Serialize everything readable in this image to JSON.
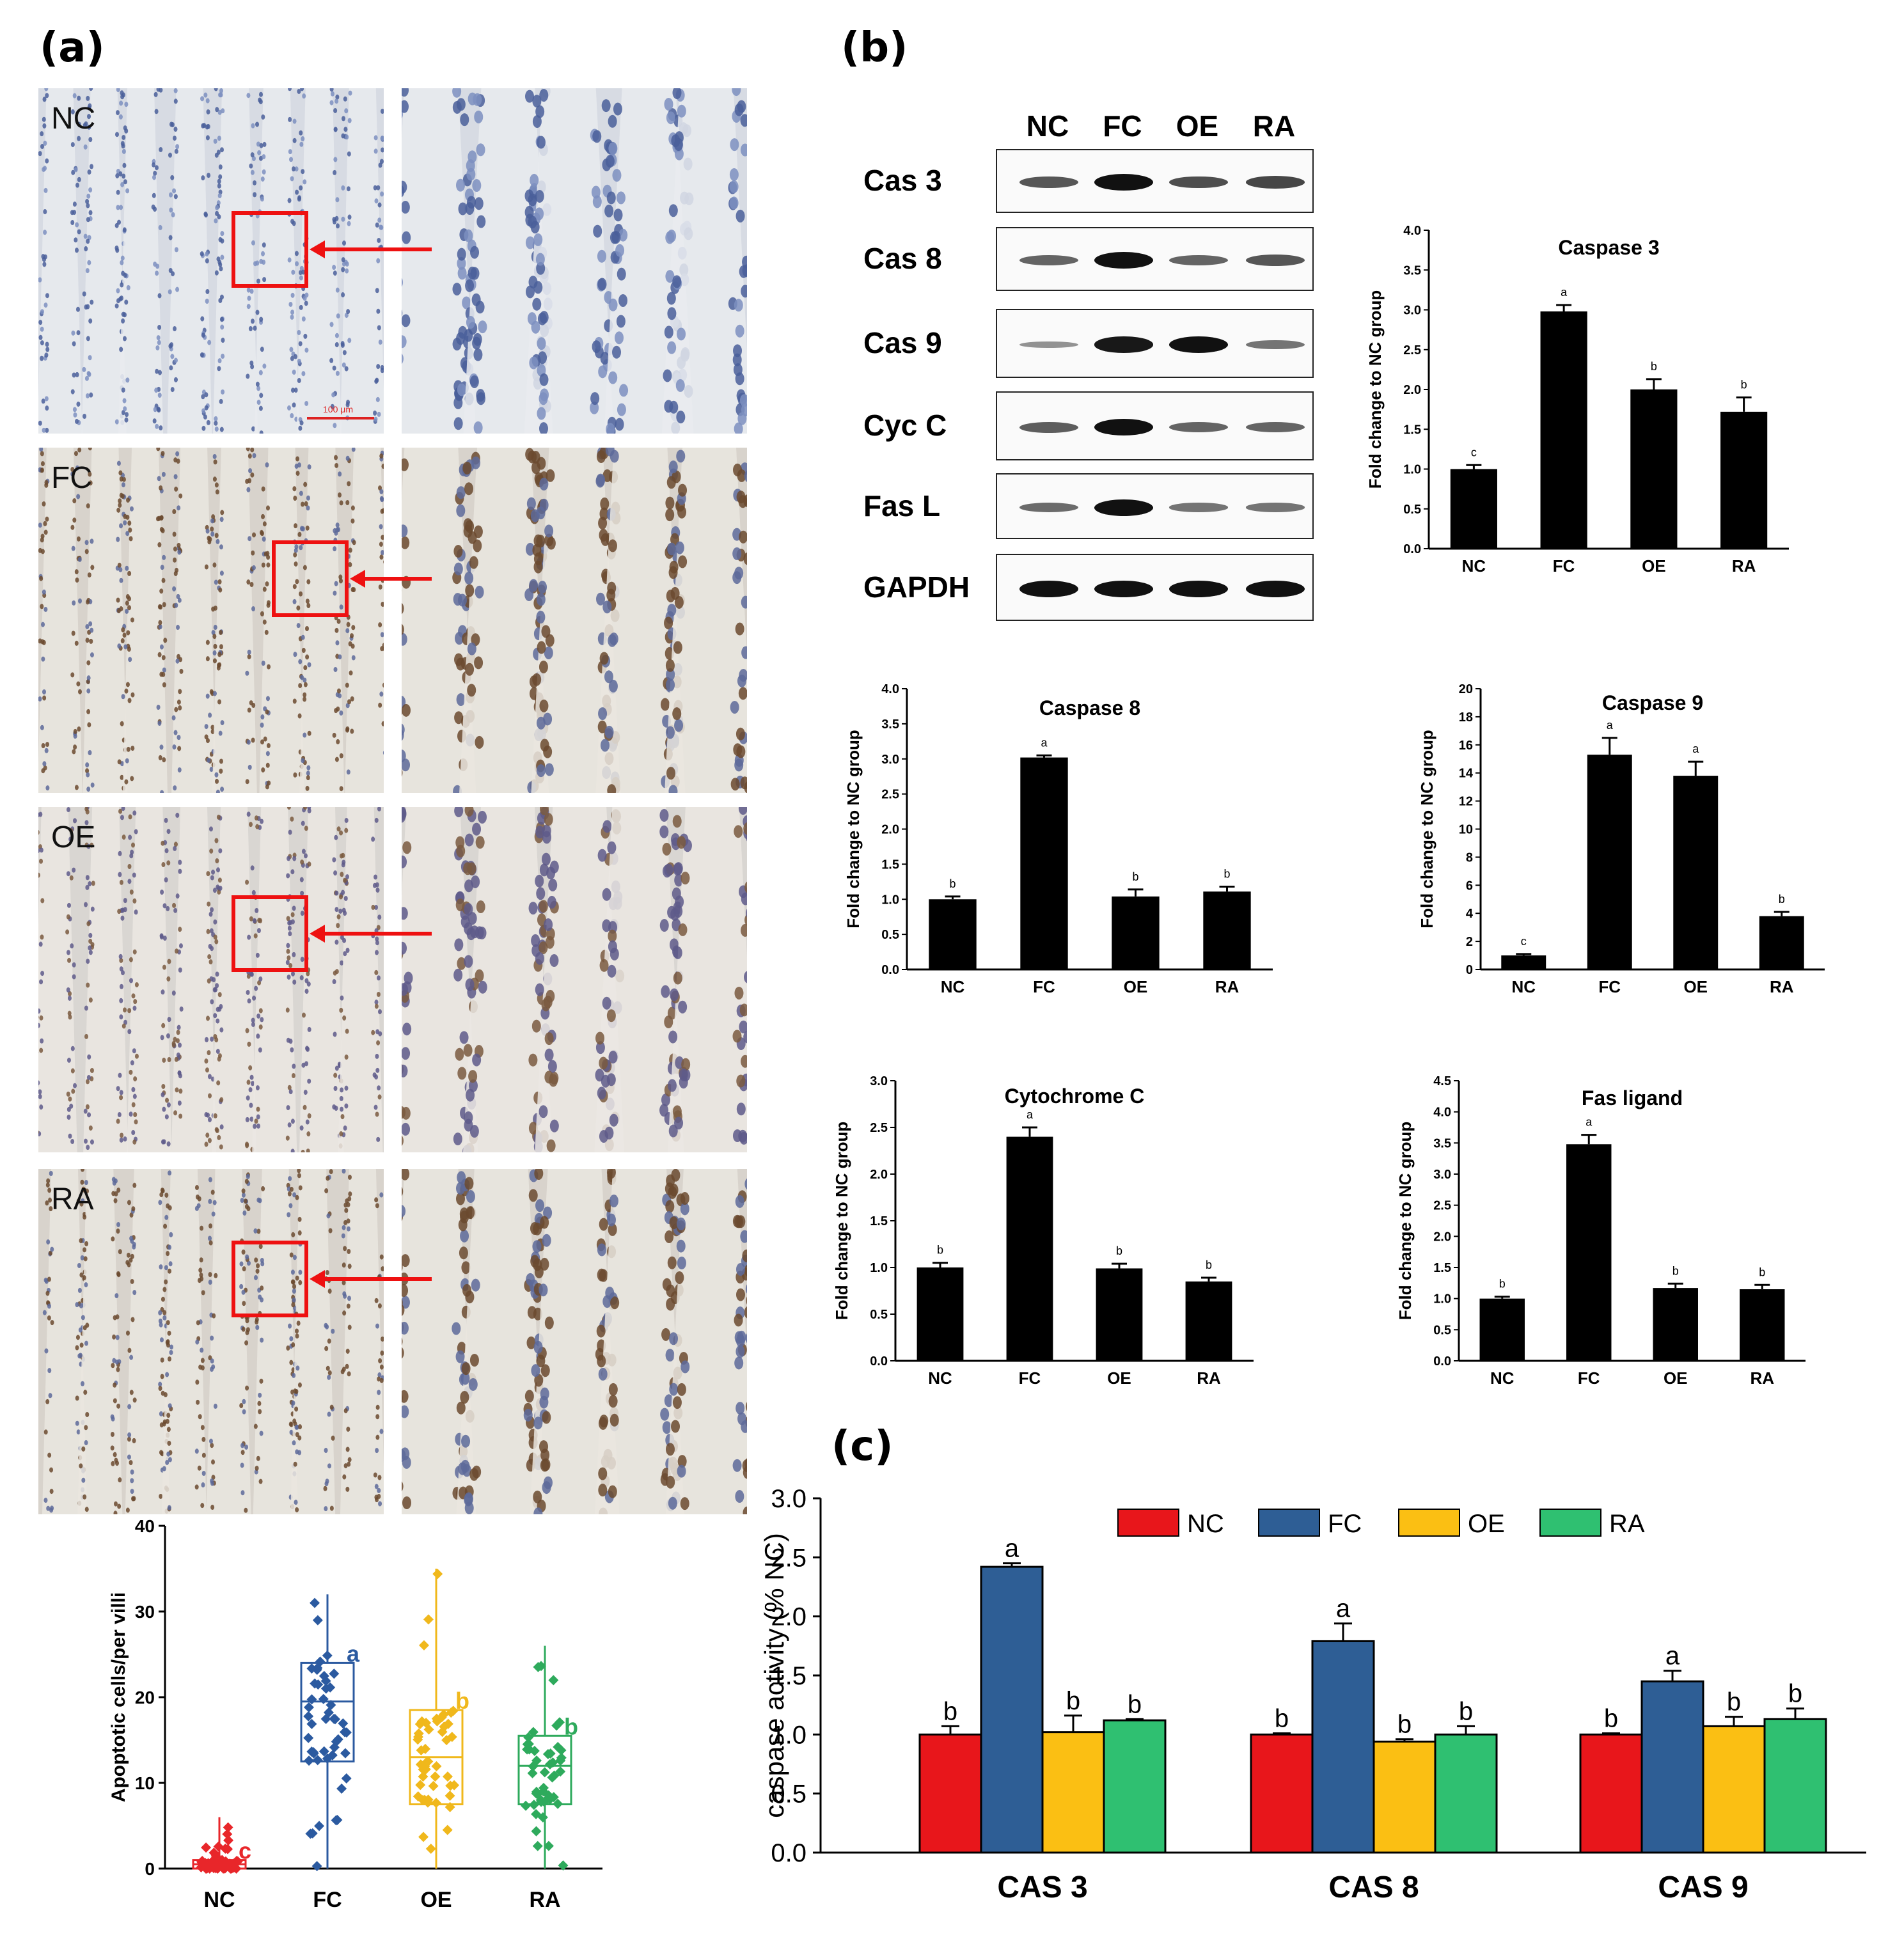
{
  "panel_labels": {
    "a": "(a)",
    "b": "(b)",
    "c": "(c)"
  },
  "micrographs": [
    {
      "label": "NC",
      "tone": "blue"
    },
    {
      "label": "FC",
      "tone": "brown"
    },
    {
      "label": "OE",
      "tone": "mixed"
    },
    {
      "label": "RA",
      "tone": "brown"
    }
  ],
  "scale_bar_text": "100 μm",
  "western_blot": {
    "groups": [
      "NC",
      "FC",
      "OE",
      "RA"
    ],
    "rows": [
      {
        "name": "Cas 3",
        "intensity": [
          0.55,
          1.0,
          0.6,
          0.65
        ]
      },
      {
        "name": "Cas 8",
        "intensity": [
          0.45,
          1.0,
          0.45,
          0.55
        ]
      },
      {
        "name": "Cas 9",
        "intensity": [
          0.15,
          0.95,
          1.0,
          0.35
        ]
      },
      {
        "name": "Cyc C",
        "intensity": [
          0.5,
          1.0,
          0.45,
          0.45
        ]
      },
      {
        "name": "Fas L",
        "intensity": [
          0.4,
          1.0,
          0.35,
          0.35
        ]
      },
      {
        "name": "GAPDH",
        "intensity": [
          1.0,
          1.0,
          1.0,
          1.0
        ]
      }
    ]
  },
  "chart_data": [
    {
      "type": "box",
      "panel": "a",
      "ylabel": "Apoptotic cells/per villi",
      "categories": [
        "NC",
        "FC",
        "OE",
        "RA"
      ],
      "ylim": [
        0,
        40
      ],
      "yticks": [
        0,
        10,
        20,
        30,
        40
      ],
      "colors": [
        "#e8262a",
        "#2b5aa0",
        "#f0b81c",
        "#2eaa5c"
      ],
      "boxes": [
        {
          "q1": 0,
          "median": 0.5,
          "q3": 1,
          "min": 0,
          "max": 6,
          "letter": "c"
        },
        {
          "q1": 12.5,
          "median": 19.5,
          "q3": 24,
          "min": 0,
          "max": 32,
          "letter": "a"
        },
        {
          "q1": 7.5,
          "median": 13,
          "q3": 18.5,
          "min": 0,
          "max": 35,
          "letter": "b"
        },
        {
          "q1": 7.5,
          "median": 12,
          "q3": 15.5,
          "min": 0,
          "max": 26,
          "letter": "b"
        }
      ]
    },
    {
      "type": "bar",
      "panel": "b",
      "title": "Caspase 3",
      "ylabel": "Fold change to NC group",
      "categories": [
        "NC",
        "FC",
        "OE",
        "RA"
      ],
      "values": [
        1.0,
        2.98,
        2.0,
        1.72
      ],
      "errors": [
        0.05,
        0.08,
        0.13,
        0.18
      ],
      "letters": [
        "c",
        "a",
        "b",
        "b"
      ],
      "ylim": [
        0,
        4.0
      ],
      "yticks": [
        "0.0",
        "0.5",
        "1.0",
        "1.5",
        "2.0",
        "2.5",
        "3.0",
        "3.5",
        "4.0"
      ]
    },
    {
      "type": "bar",
      "panel": "b",
      "title": "Caspase 8",
      "ylabel": "Fold change to NC group",
      "categories": [
        "NC",
        "FC",
        "OE",
        "RA"
      ],
      "values": [
        1.0,
        3.02,
        1.04,
        1.11
      ],
      "errors": [
        0.04,
        0.03,
        0.1,
        0.07
      ],
      "letters": [
        "b",
        "a",
        "b",
        "b"
      ],
      "ylim": [
        0,
        4.0
      ],
      "yticks": [
        "0.0",
        "0.5",
        "1.0",
        "1.5",
        "2.0",
        "2.5",
        "3.0",
        "3.5",
        "4.0"
      ]
    },
    {
      "type": "bar",
      "panel": "b",
      "title": "Caspase 9",
      "ylabel": "Fold change to NC group",
      "categories": [
        "NC",
        "FC",
        "OE",
        "RA"
      ],
      "values": [
        1.0,
        15.3,
        13.8,
        3.8
      ],
      "errors": [
        0.1,
        1.2,
        1.0,
        0.3
      ],
      "letters": [
        "c",
        "a",
        "a",
        "b"
      ],
      "ylim": [
        0,
        20
      ],
      "yticks": [
        "0",
        "2",
        "4",
        "6",
        "8",
        "10",
        "12",
        "14",
        "16",
        "18",
        "20"
      ]
    },
    {
      "type": "bar",
      "panel": "b",
      "title": "Cytochrome C",
      "ylabel": "Fold change to NC group",
      "categories": [
        "NC",
        "FC",
        "OE",
        "RA"
      ],
      "values": [
        1.0,
        2.4,
        0.99,
        0.85
      ],
      "errors": [
        0.05,
        0.1,
        0.05,
        0.04
      ],
      "letters": [
        "b",
        "a",
        "b",
        "b"
      ],
      "ylim": [
        0,
        3.0
      ],
      "yticks": [
        "0.0",
        "0.5",
        "1.0",
        "1.5",
        "2.0",
        "2.5",
        "3.0"
      ]
    },
    {
      "type": "bar",
      "panel": "b",
      "title": "Fas ligand",
      "ylabel": "Fold change to NC group",
      "categories": [
        "NC",
        "FC",
        "OE",
        "RA"
      ],
      "values": [
        1.0,
        3.48,
        1.17,
        1.15
      ],
      "errors": [
        0.03,
        0.15,
        0.07,
        0.07
      ],
      "letters": [
        "b",
        "a",
        "b",
        "b"
      ],
      "ylim": [
        0,
        4.5
      ],
      "yticks": [
        "0.0",
        "0.5",
        "1.0",
        "1.5",
        "2.0",
        "2.5",
        "3.0",
        "3.5",
        "4.0",
        "4.5"
      ]
    },
    {
      "type": "grouped-bar",
      "panel": "c",
      "ylabel": "caspase activity (% NC)",
      "categories": [
        "CAS 3",
        "CAS 8",
        "CAS 9"
      ],
      "ylim": [
        0,
        3.0
      ],
      "yticks": [
        "0.0",
        "0.5",
        "1.0",
        "1.5",
        "2.0",
        "2.5",
        "3.0"
      ],
      "legend_position": "top",
      "series": [
        {
          "name": "NC",
          "color": "#e8161b",
          "values": [
            1.0,
            1.0,
            1.0
          ],
          "errors": [
            0.07,
            0.01,
            0.01
          ],
          "letters": [
            "b",
            "b",
            "b"
          ]
        },
        {
          "name": "FC",
          "color": "#2e5e95",
          "values": [
            2.42,
            1.79,
            1.45
          ],
          "errors": [
            0.03,
            0.15,
            0.09
          ],
          "letters": [
            "a",
            "a",
            "a"
          ]
        },
        {
          "name": "OE",
          "color": "#fbbf13",
          "values": [
            1.02,
            0.94,
            1.07
          ],
          "errors": [
            0.14,
            0.02,
            0.08
          ],
          "letters": [
            "b",
            "b",
            "b"
          ]
        },
        {
          "name": "RA",
          "color": "#2fc071",
          "values": [
            1.12,
            1.0,
            1.13
          ],
          "errors": [
            0.01,
            0.07,
            0.09
          ],
          "letters": [
            "b",
            "b",
            "b"
          ]
        }
      ]
    }
  ]
}
